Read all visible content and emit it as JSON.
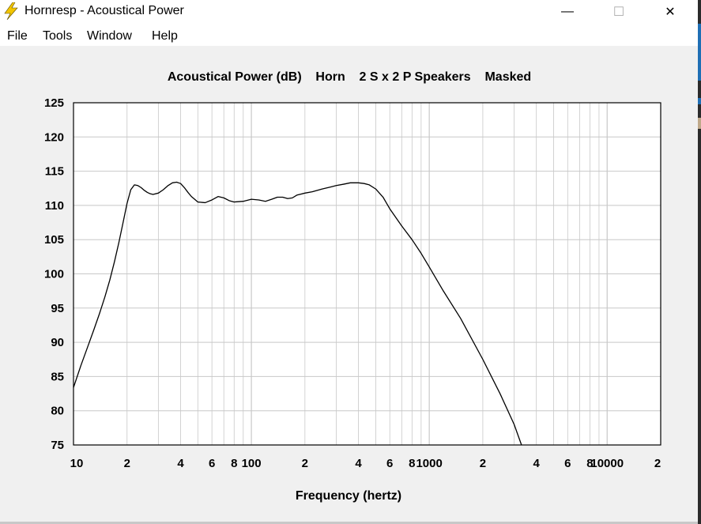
{
  "window": {
    "title": "Hornresp - Acoustical Power",
    "minimize_glyph": "—",
    "maximize_glyph": "☐",
    "close_glyph": "✕",
    "icon": "lightning-bolt-icon"
  },
  "menu": {
    "items": [
      "File",
      "Tools",
      "Window",
      "Help"
    ]
  },
  "colors": {
    "plot_background": "#ffffff",
    "grid": "#c8c8c8",
    "curve": "#000000",
    "app_icon": "#f2c500"
  },
  "chart_data": {
    "type": "line",
    "title": "Acoustical Power (dB)    Horn    2 S x 2 P Speakers    Masked",
    "xlabel": "Frequency (hertz)",
    "ylabel": "",
    "x_scale": "log",
    "xlim": [
      10,
      20000
    ],
    "ylim": [
      75,
      125
    ],
    "grid": true,
    "y_ticks": [
      75,
      80,
      85,
      90,
      95,
      100,
      105,
      110,
      115,
      120,
      125
    ],
    "x_tick_labels": [
      {
        "x": 10,
        "label": "10"
      },
      {
        "x": 20,
        "label": "2"
      },
      {
        "x": 40,
        "label": "4"
      },
      {
        "x": 60,
        "label": "6"
      },
      {
        "x": 80,
        "label": "8"
      },
      {
        "x": 100,
        "label": "100"
      },
      {
        "x": 200,
        "label": "2"
      },
      {
        "x": 400,
        "label": "4"
      },
      {
        "x": 600,
        "label": "6"
      },
      {
        "x": 800,
        "label": "8"
      },
      {
        "x": 1000,
        "label": "1000"
      },
      {
        "x": 2000,
        "label": "2"
      },
      {
        "x": 4000,
        "label": "4"
      },
      {
        "x": 6000,
        "label": "6"
      },
      {
        "x": 8000,
        "label": "8"
      },
      {
        "x": 10000,
        "label": "10000"
      },
      {
        "x": 20000,
        "label": "2"
      }
    ],
    "series": [
      {
        "x": [
          10,
          11,
          12,
          13,
          14,
          15,
          16,
          17,
          18,
          19,
          20,
          21,
          22,
          23,
          24,
          25,
          26,
          27,
          28,
          30,
          32,
          34,
          36,
          38,
          40,
          42,
          44,
          46,
          50,
          55,
          60,
          65,
          70,
          75,
          80,
          90,
          100,
          110,
          120,
          130,
          140,
          150,
          160,
          170,
          180,
          200,
          220,
          250,
          280,
          300,
          330,
          360,
          400,
          430,
          460,
          500,
          550,
          600,
          700,
          800,
          900,
          1000,
          1200,
          1500,
          2000,
          2500,
          3000,
          3300
        ],
        "y": [
          83.4,
          86.6,
          89.3,
          91.8,
          94.2,
          96.6,
          99.1,
          101.8,
          104.6,
          107.5,
          110.3,
          112.3,
          113.0,
          112.9,
          112.6,
          112.2,
          111.9,
          111.7,
          111.6,
          111.8,
          112.3,
          112.9,
          113.3,
          113.4,
          113.2,
          112.6,
          111.9,
          111.3,
          110.5,
          110.4,
          110.8,
          111.3,
          111.1,
          110.7,
          110.5,
          110.6,
          110.9,
          110.8,
          110.6,
          110.9,
          111.2,
          111.2,
          111.0,
          111.1,
          111.5,
          111.8,
          112.0,
          112.4,
          112.7,
          112.9,
          113.1,
          113.3,
          113.3,
          113.2,
          113.0,
          112.4,
          111.2,
          109.5,
          107.0,
          105.0,
          103.0,
          101.0,
          97.5,
          93.5,
          87.5,
          82.5,
          78.0,
          75.0
        ]
      }
    ]
  }
}
